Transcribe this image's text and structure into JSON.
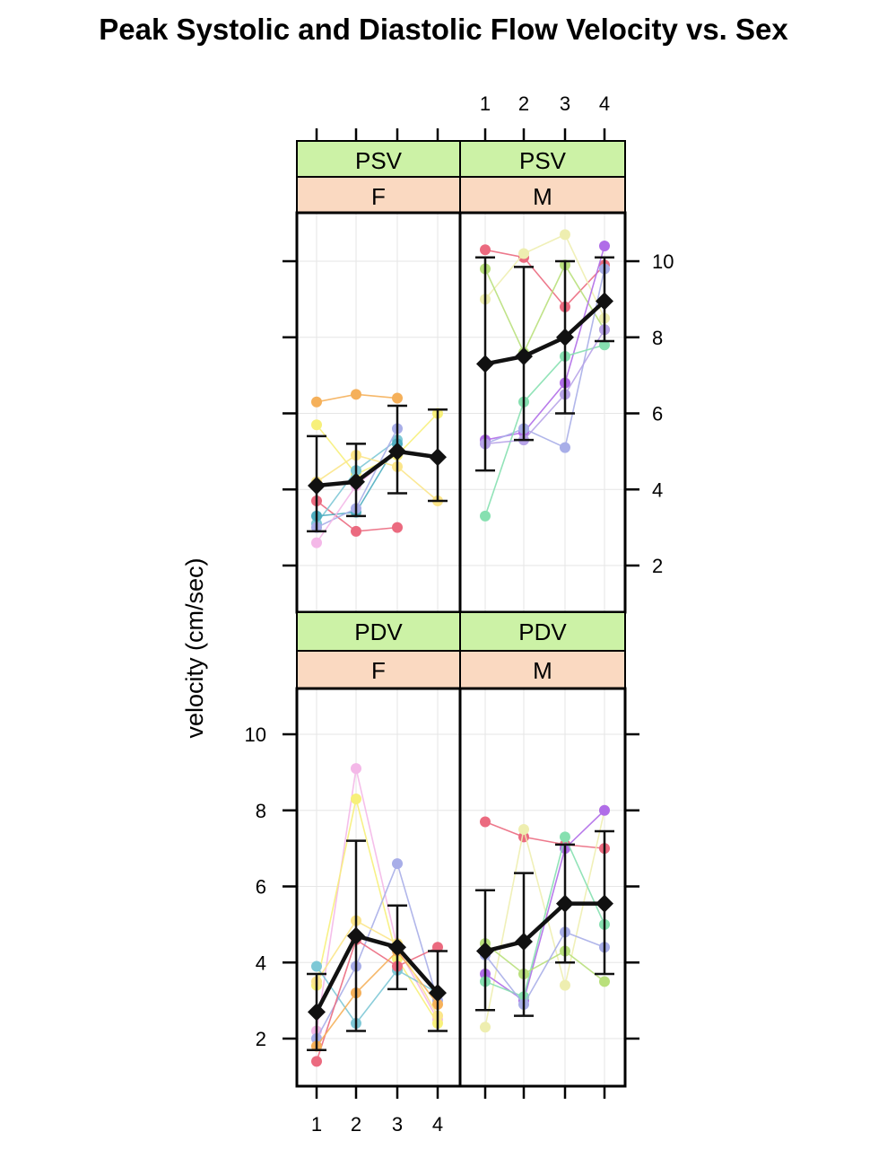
{
  "title": "Peak Systolic and Diastolic Flow Velocity vs. Sex",
  "ylabel": "velocity (cm/sec)",
  "colors": {
    "strip_top": "#ccf2a6",
    "strip_bottom": "#fad9c1",
    "mean_line": "#111111",
    "grid": "#e6e6e6"
  },
  "chart_data": {
    "type": "line",
    "layout": "2x2 lattice panels",
    "x_ticks": [
      1,
      2,
      3,
      4
    ],
    "y_ticks": [
      2,
      4,
      6,
      8,
      10
    ],
    "ylim": [
      1,
      11
    ],
    "grid": true,
    "panels": [
      {
        "id": "psv-f",
        "measure": "PSV",
        "sex": "F",
        "mean": [
          4.1,
          4.2,
          5.0,
          4.85
        ],
        "lower": [
          2.9,
          3.3,
          3.9,
          3.7
        ],
        "upper": [
          5.4,
          5.2,
          6.2,
          6.1
        ],
        "subjects": [
          {
            "color": "#f5b05a",
            "values": [
              6.3,
              6.5,
              6.4
            ]
          },
          {
            "color": "#f7f07a",
            "values": [
              5.7,
              4.4,
              4.9,
              6.0
            ]
          },
          {
            "color": "#eb6a7f",
            "values": [
              3.7,
              2.9,
              3.0
            ]
          },
          {
            "color": "#7ec8d6",
            "values": [
              3.1,
              4.5,
              5.3
            ]
          },
          {
            "color": "#4faec0",
            "values": [
              3.3,
              3.4,
              5.2
            ]
          },
          {
            "color": "#a8aee8",
            "values": [
              3.0,
              3.5,
              5.6
            ]
          },
          {
            "color": "#f4b8e8",
            "values": [
              2.6,
              4.1,
              5.0
            ]
          },
          {
            "color": "#fbe58a",
            "values": [
              4.2,
              4.9,
              4.6,
              3.7
            ]
          }
        ]
      },
      {
        "id": "psv-m",
        "measure": "PSV",
        "sex": "M",
        "mean": [
          7.3,
          7.5,
          8.0,
          8.95
        ],
        "lower": [
          4.5,
          5.3,
          6.0,
          7.9
        ],
        "upper": [
          10.1,
          9.85,
          10.0,
          10.1
        ],
        "subjects": [
          {
            "color": "#eb6a7f",
            "values": [
              10.3,
              10.1,
              8.8,
              9.9
            ]
          },
          {
            "color": "#eeeeb0",
            "values": [
              9.0,
              10.2,
              10.7,
              8.5
            ]
          },
          {
            "color": "#b9e07c",
            "values": [
              9.8,
              7.6,
              9.9,
              8.2
            ]
          },
          {
            "color": "#b06de8",
            "values": [
              5.3,
              5.5,
              6.8,
              10.4
            ]
          },
          {
            "color": "#a8aee8",
            "values": [
              5.2,
              5.6,
              5.1,
              9.8
            ]
          },
          {
            "color": "#86e0b0",
            "values": [
              3.3,
              6.3,
              7.5,
              7.8
            ]
          },
          {
            "color": "#b7a3e8",
            "values": [
              5.2,
              5.3,
              6.5,
              8.2
            ]
          }
        ]
      },
      {
        "id": "pdv-f",
        "measure": "PDV",
        "sex": "F",
        "mean": [
          2.7,
          4.7,
          4.4,
          3.2
        ],
        "lower": [
          1.7,
          2.2,
          3.3,
          2.2
        ],
        "upper": [
          3.7,
          7.2,
          5.5,
          4.3
        ],
        "subjects": [
          {
            "color": "#f4b8e8",
            "values": [
              2.2,
              9.1,
              4.4,
              2.5
            ]
          },
          {
            "color": "#f7f07a",
            "values": [
              3.4,
              8.3,
              4.1,
              2.4
            ]
          },
          {
            "color": "#a8aee8",
            "values": [
              2.0,
              3.9,
              6.6,
              3.0
            ]
          },
          {
            "color": "#7ec8d6",
            "values": [
              3.9,
              2.4,
              3.8,
              3.2
            ]
          },
          {
            "color": "#eb6a7f",
            "values": [
              1.4,
              4.6,
              3.9,
              4.4
            ]
          },
          {
            "color": "#f5b05a",
            "values": [
              1.8,
              3.2,
              4.3,
              2.9
            ]
          },
          {
            "color": "#fbe58a",
            "values": [
              3.5,
              5.1,
              4.5,
              2.6
            ]
          }
        ]
      },
      {
        "id": "pdv-m",
        "measure": "PDV",
        "sex": "M",
        "mean": [
          4.3,
          4.55,
          5.55,
          5.55
        ],
        "lower": [
          2.75,
          2.6,
          4.0,
          3.7
        ],
        "upper": [
          5.9,
          6.35,
          7.1,
          7.45
        ],
        "subjects": [
          {
            "color": "#eb6a7f",
            "values": [
              7.7,
              7.3,
              7.1,
              7.0
            ]
          },
          {
            "color": "#eeeeb0",
            "values": [
              2.3,
              7.5,
              3.4,
              8.0
            ]
          },
          {
            "color": "#b06de8",
            "values": [
              3.7,
              3.0,
              7.0,
              8.0
            ]
          },
          {
            "color": "#86e0b0",
            "values": [
              3.5,
              3.1,
              7.3,
              5.0
            ]
          },
          {
            "color": "#b9e07c",
            "values": [
              4.5,
              3.7,
              4.3,
              3.5
            ]
          },
          {
            "color": "#a8aee8",
            "values": [
              4.2,
              2.9,
              4.8,
              4.4
            ]
          }
        ]
      }
    ]
  }
}
